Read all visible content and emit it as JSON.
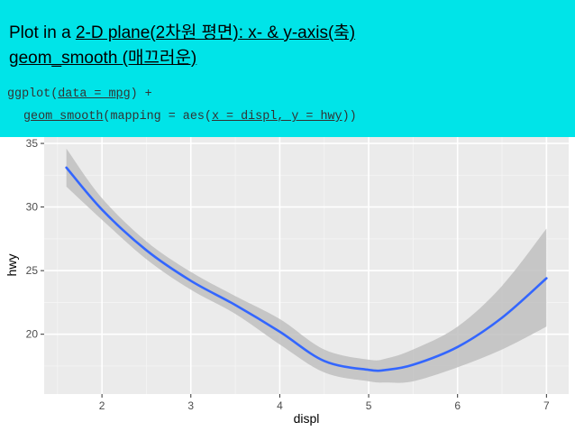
{
  "slide": {
    "title_line1_prefix": "Plot in a ",
    "title_line1_link": "2-D plane(2차원 평면): x- & y-axis(축)",
    "title_line2_link": "geom_smooth (매끄러운)",
    "code_line1_fn": "ggplot(",
    "code_line1_arg": "data = mpg",
    "code_line1_end": ") +",
    "code_line2_fn": "geom_smooth",
    "code_line2_mid": "(mapping = aes(",
    "code_line2_arg": "x = displ, y = hwy",
    "code_line2_end": "))"
  },
  "chart_data": {
    "type": "line",
    "xlabel": "displ",
    "ylabel": "hwy",
    "xlim": [
      1.35,
      7.25
    ],
    "ylim": [
      15.3,
      35.5
    ],
    "x_ticks": [
      2,
      3,
      4,
      5,
      6,
      7
    ],
    "y_ticks": [
      20,
      25,
      30,
      35
    ],
    "grid": true,
    "background": "#ebebeb",
    "line_color": "#3366ff",
    "band_color": "#bfbfbf",
    "series": [
      {
        "x": [
          1.6,
          2.0,
          2.5,
          3.0,
          3.5,
          4.0,
          4.5,
          5.0,
          5.2,
          5.5,
          6.0,
          6.5,
          7.0
        ],
        "y": [
          33.1,
          29.8,
          26.6,
          24.2,
          22.3,
          20.2,
          17.9,
          17.2,
          17.2,
          17.6,
          19.0,
          21.3,
          24.4
        ],
        "lower": [
          31.6,
          29.0,
          25.9,
          23.5,
          21.6,
          19.2,
          17.0,
          16.3,
          16.2,
          16.3,
          17.4,
          18.8,
          20.6
        ],
        "upper": [
          34.6,
          30.7,
          27.3,
          24.9,
          23.0,
          21.2,
          18.8,
          18.0,
          18.1,
          18.8,
          20.6,
          23.8,
          28.3
        ]
      }
    ]
  }
}
